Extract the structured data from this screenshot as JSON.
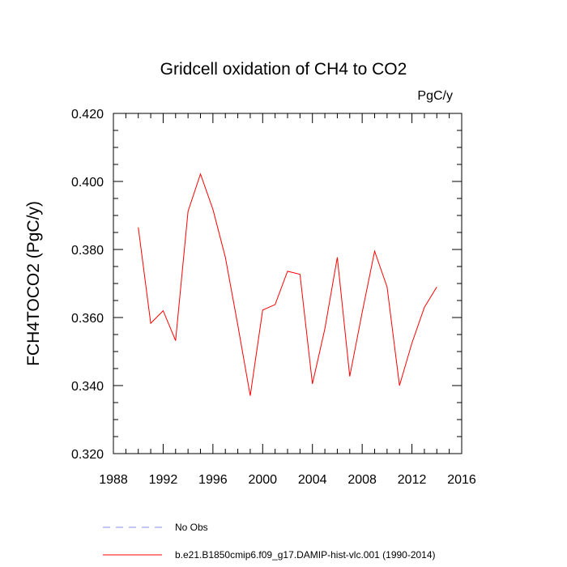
{
  "chart_data": {
    "type": "line",
    "title": "Gridcell oxidation of CH4 to CO2",
    "units_label": "PgC/y",
    "ylabel": "FCH4TOCO2  (PgC/y)",
    "xlabel": "",
    "xlim": [
      1988,
      2016
    ],
    "ylim": [
      0.32,
      0.42
    ],
    "xticks": [
      "1988",
      "1992",
      "1996",
      "2000",
      "2004",
      "2008",
      "2012",
      "2016"
    ],
    "yticks": [
      "0.320",
      "0.340",
      "0.360",
      "0.380",
      "0.400",
      "0.420"
    ],
    "grid": false,
    "legend_position": "bottom",
    "series": [
      {
        "name": "b.e21.B1850cmip6.f09_g17.DAMIP-hist-vlc.001 (1990-2014)",
        "color": "#ff0000",
        "style": "solid",
        "x": [
          1990,
          1991,
          1992,
          1993,
          1994,
          1995,
          1996,
          1997,
          1998,
          1999,
          2000,
          2001,
          2002,
          2003,
          2004,
          2005,
          2006,
          2007,
          2008,
          2009,
          2010,
          2011,
          2012,
          2013,
          2014
        ],
        "values": [
          0.3865,
          0.3583,
          0.362,
          0.3532,
          0.3912,
          0.4022,
          0.3918,
          0.3777,
          0.3578,
          0.337,
          0.3622,
          0.3638,
          0.3736,
          0.3727,
          0.3405,
          0.3567,
          0.3777,
          0.3427,
          0.3615,
          0.3795,
          0.369,
          0.34,
          0.3525,
          0.363,
          0.369
        ]
      }
    ],
    "legend": [
      {
        "label": "No Obs",
        "color": "#8888ee",
        "style": "dashed"
      },
      {
        "label": "b.e21.B1850cmip6.f09_g17.DAMIP-hist-vlc.001 (1990-2014)",
        "color": "#ff0000",
        "style": "solid"
      }
    ]
  }
}
